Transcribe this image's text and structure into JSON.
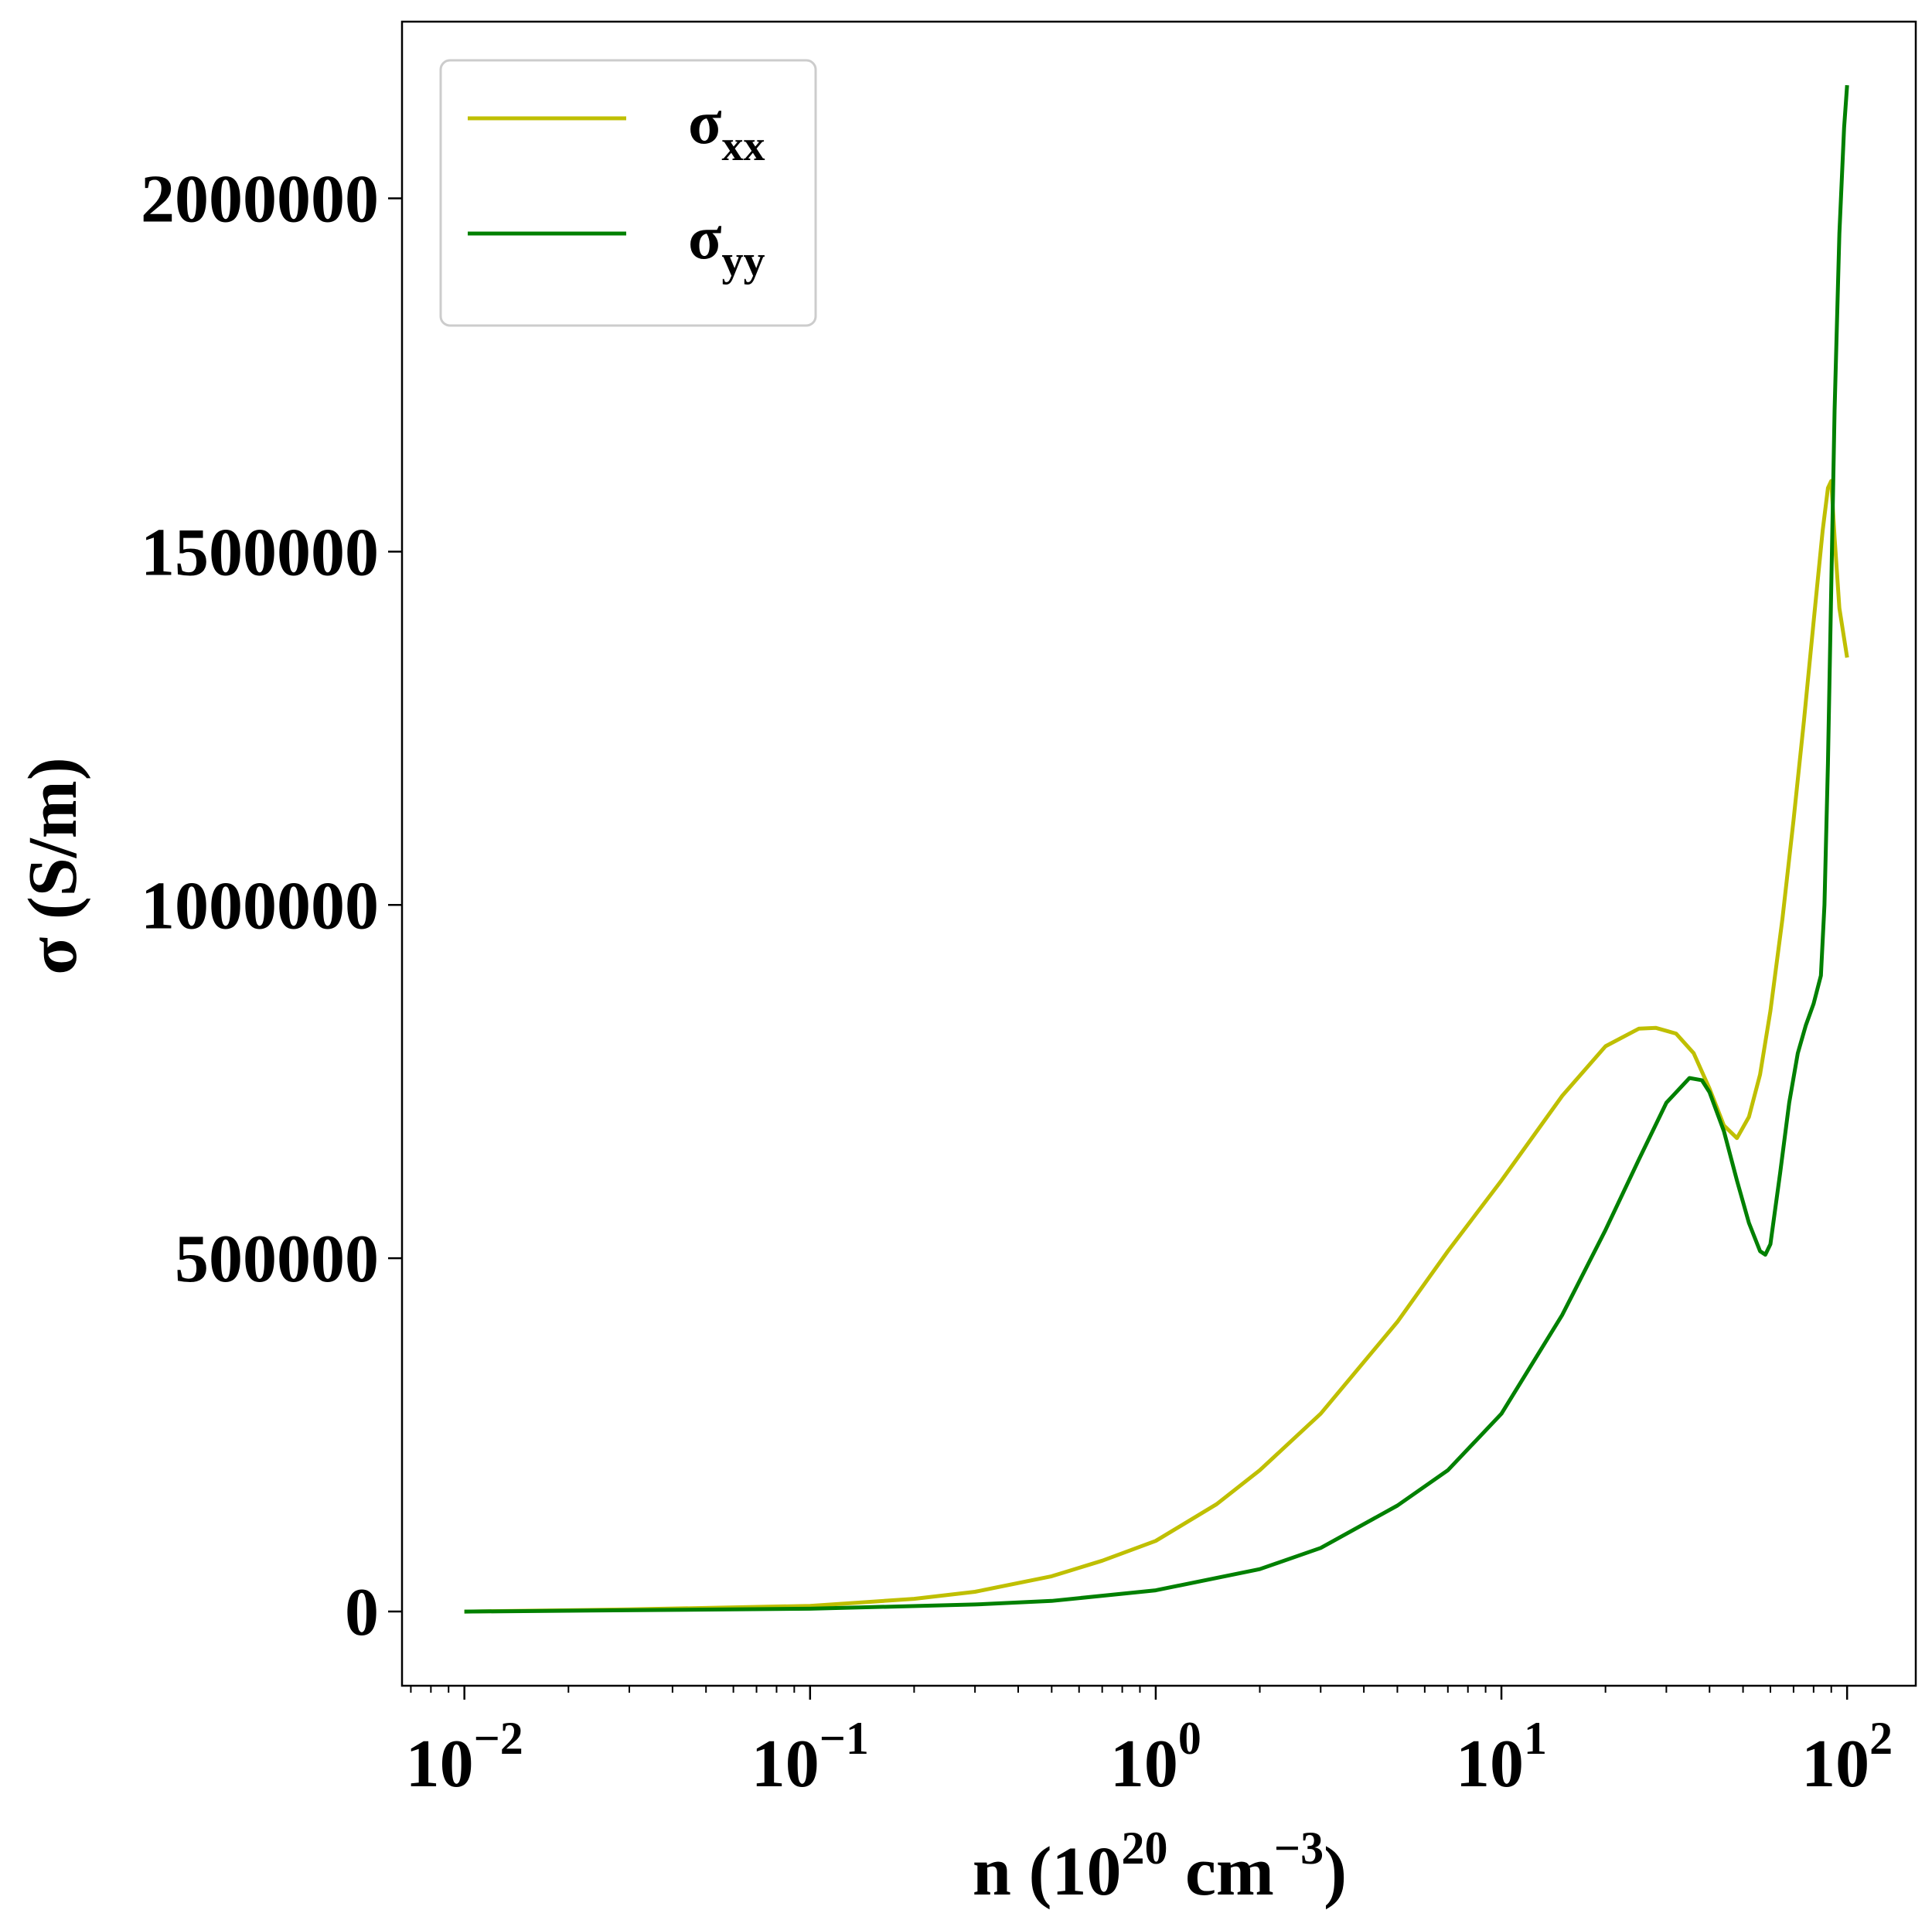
{
  "chart_data": {
    "type": "line",
    "title": "",
    "xlabel": {
      "base": "n (10",
      "exp1": "20",
      "mid": " cm",
      "exp2": "−3",
      "end": ")"
    },
    "ylabel": "σ (S/m)",
    "xscale": "log",
    "xlim": [
      0.0066,
      158
    ],
    "ylim": [
      -105000,
      2250000
    ],
    "xticks": [
      {
        "value": 0.01,
        "base": "10",
        "exp": "−2"
      },
      {
        "value": 0.1,
        "base": "10",
        "exp": "−1"
      },
      {
        "value": 1,
        "base": "10",
        "exp": "0"
      },
      {
        "value": 10,
        "base": "10",
        "exp": "1"
      },
      {
        "value": 100,
        "base": "10",
        "exp": "2"
      }
    ],
    "yticks": [
      {
        "value": 0,
        "label": "0"
      },
      {
        "value": 500000,
        "label": "500000"
      },
      {
        "value": 1000000,
        "label": "1000000"
      },
      {
        "value": 1500000,
        "label": "1500000"
      },
      {
        "value": 2000000,
        "label": "2000000"
      }
    ],
    "grid": false,
    "legend_position": "top-left",
    "series": [
      {
        "name": "σxx",
        "legend_base": "σ",
        "legend_sub": "xx",
        "color": "#bfbf00",
        "x": [
          0.01,
          0.03,
          0.1,
          0.2,
          0.3,
          0.5,
          0.7,
          1,
          1.5,
          2,
          3,
          5,
          7,
          10,
          15,
          20,
          25,
          28,
          32,
          36,
          40,
          44,
          48,
          52,
          56,
          60,
          65,
          70,
          75,
          80,
          85,
          88,
          90,
          92,
          95,
          100
        ],
        "y": [
          0,
          3000,
          8000,
          18000,
          28000,
          50000,
          72000,
          100000,
          152000,
          200000,
          280000,
          410000,
          510000,
          610000,
          730000,
          800000,
          825000,
          826000,
          818000,
          790000,
          740000,
          688000,
          670000,
          700000,
          760000,
          850000,
          980000,
          1120000,
          1260000,
          1400000,
          1530000,
          1590000,
          1600000,
          1520000,
          1420000,
          1350000
        ]
      },
      {
        "name": "σyy",
        "legend_base": "σ",
        "legend_sub": "yy",
        "color": "#008000",
        "x": [
          0.01,
          0.1,
          0.3,
          0.5,
          1,
          2,
          3,
          5,
          7,
          10,
          15,
          20,
          25,
          30,
          35,
          38,
          40,
          44,
          48,
          52,
          56,
          58,
          60,
          64,
          68,
          72,
          76,
          80,
          84,
          86,
          88,
          90,
          92,
          95,
          98,
          100
        ],
        "y": [
          0,
          4000,
          10000,
          15000,
          30000,
          60000,
          90000,
          150000,
          200000,
          280000,
          420000,
          540000,
          640000,
          720000,
          755000,
          752000,
          735000,
          680000,
          610000,
          550000,
          510000,
          505000,
          520000,
          620000,
          720000,
          790000,
          830000,
          860000,
          900000,
          1000000,
          1200000,
          1450000,
          1700000,
          1950000,
          2100000,
          2160000
        ]
      }
    ]
  }
}
